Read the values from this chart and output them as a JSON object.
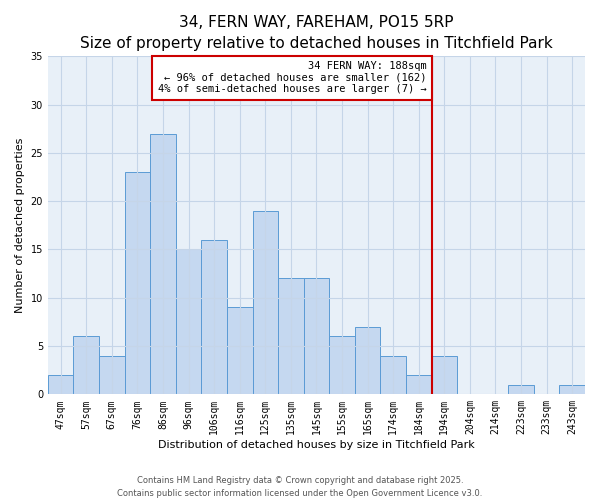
{
  "title": "34, FERN WAY, FAREHAM, PO15 5RP",
  "subtitle": "Size of property relative to detached houses in Titchfield Park",
  "xlabel": "Distribution of detached houses by size in Titchfield Park",
  "ylabel": "Number of detached properties",
  "bar_labels": [
    "47sqm",
    "57sqm",
    "67sqm",
    "76sqm",
    "86sqm",
    "96sqm",
    "106sqm",
    "116sqm",
    "125sqm",
    "135sqm",
    "145sqm",
    "155sqm",
    "165sqm",
    "174sqm",
    "184sqm",
    "194sqm",
    "204sqm",
    "214sqm",
    "223sqm",
    "233sqm",
    "243sqm"
  ],
  "bar_values": [
    2,
    6,
    4,
    23,
    27,
    15,
    16,
    9,
    19,
    12,
    12,
    6,
    7,
    4,
    2,
    4,
    0,
    0,
    1,
    0,
    1
  ],
  "bar_color": "#c5d8f0",
  "bar_edge_color": "#5b9bd5",
  "vline_x_index": 14,
  "vline_color": "#cc0000",
  "annotation_text": "34 FERN WAY: 188sqm\n← 96% of detached houses are smaller (162)\n4% of semi-detached houses are larger (7) →",
  "annotation_box_color": "#ffffff",
  "annotation_box_edge_color": "#cc0000",
  "ylim": [
    0,
    35
  ],
  "yticks": [
    0,
    5,
    10,
    15,
    20,
    25,
    30,
    35
  ],
  "background_color": "#ffffff",
  "plot_bg_color": "#e8f0f8",
  "grid_color": "#c5d5e8",
  "footer1": "Contains HM Land Registry data © Crown copyright and database right 2025.",
  "footer2": "Contains public sector information licensed under the Open Government Licence v3.0.",
  "title_fontsize": 11,
  "subtitle_fontsize": 9,
  "axis_label_fontsize": 8,
  "tick_fontsize": 7,
  "annotation_fontsize": 7.5,
  "footer_fontsize": 6
}
